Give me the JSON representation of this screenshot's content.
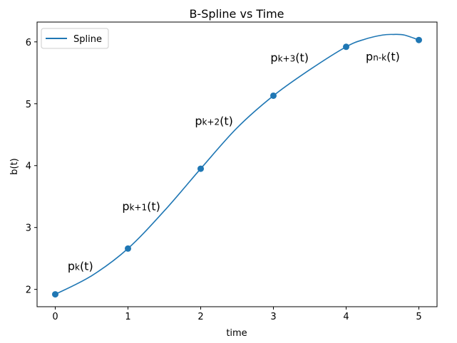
{
  "chart_data": {
    "type": "line",
    "title": "B-Spline vs Time",
    "xlabel": "time",
    "ylabel": "b(t)",
    "xlim": [
      -0.25,
      5.25
    ],
    "ylim": [
      1.72,
      6.32
    ],
    "xticks": [
      "0",
      "1",
      "2",
      "3",
      "4",
      "5"
    ],
    "yticks": [
      "2",
      "3",
      "4",
      "5",
      "6"
    ],
    "grid": false,
    "legend": {
      "location": "upper-left",
      "entries": [
        "Spline"
      ]
    },
    "series": [
      {
        "name": "Spline",
        "style": "line",
        "color": "#1f77b4",
        "x": [
          0,
          0.5,
          1,
          1.5,
          2,
          2.5,
          3,
          3.5,
          4,
          4.25,
          4.5,
          4.65,
          4.8,
          5
        ],
        "y": [
          1.92,
          2.22,
          2.66,
          3.27,
          3.95,
          4.61,
          5.13,
          5.55,
          5.92,
          6.04,
          6.11,
          6.12,
          6.11,
          6.03
        ]
      },
      {
        "name": "",
        "style": "markers",
        "color": "#1f77b4",
        "x": [
          0,
          1,
          2,
          3,
          4,
          5
        ],
        "y": [
          1.92,
          2.66,
          3.95,
          5.13,
          5.92,
          6.03
        ]
      }
    ],
    "annotations": [
      {
        "main": "p",
        "sub": "k",
        "tail": "(t)",
        "x": 0.17,
        "y": 2.31
      },
      {
        "main": "p",
        "sub": "k+1",
        "tail": "(t)",
        "x": 0.92,
        "y": 3.28
      },
      {
        "main": "p",
        "sub": "k+2",
        "tail": "(t)",
        "x": 1.92,
        "y": 4.66
      },
      {
        "main": "p",
        "sub": "k+3",
        "tail": "(t)",
        "x": 2.96,
        "y": 5.68
      },
      {
        "main": "p",
        "sub": "n-k",
        "tail": "(t)",
        "x": 4.27,
        "y": 5.7
      }
    ]
  }
}
